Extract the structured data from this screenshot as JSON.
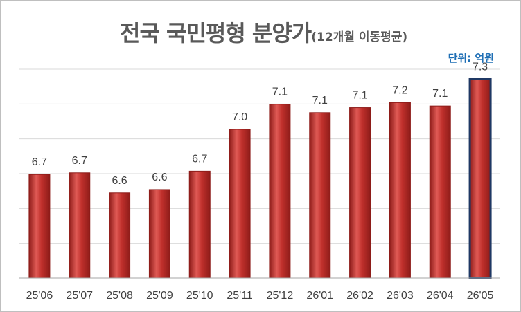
{
  "chart_data": {
    "type": "bar",
    "title": "전국 국민평형 분양가",
    "subtitle": "(12개월 이동평균)",
    "unit_label": "단위: 억원",
    "categories": [
      "25'06",
      "25'07",
      "25'08",
      "25'09",
      "25'10",
      "25'11",
      "25'12",
      "26'01",
      "26'02",
      "26'03",
      "26'04",
      "26'05"
    ],
    "values": [
      6.72,
      6.73,
      6.61,
      6.63,
      6.74,
      6.99,
      7.14,
      7.09,
      7.12,
      7.15,
      7.13,
      7.29
    ],
    "data_labels": [
      "6.7",
      "6.7",
      "6.6",
      "6.6",
      "6.7",
      "7.0",
      "7.1",
      "7.1",
      "7.1",
      "7.2",
      "7.1",
      "7.3"
    ],
    "ylim": [
      6.1,
      7.35
    ],
    "grid": true,
    "xlabel": "",
    "ylabel": "",
    "highlight_index": 11,
    "colors": {
      "bar": "#c0302c",
      "bar_light": "#e05a55",
      "bar_dark": "#8e1c19",
      "highlight_border": "#1f3864",
      "grid": "#d9d9d9",
      "axis": "#a6a6a6"
    }
  }
}
